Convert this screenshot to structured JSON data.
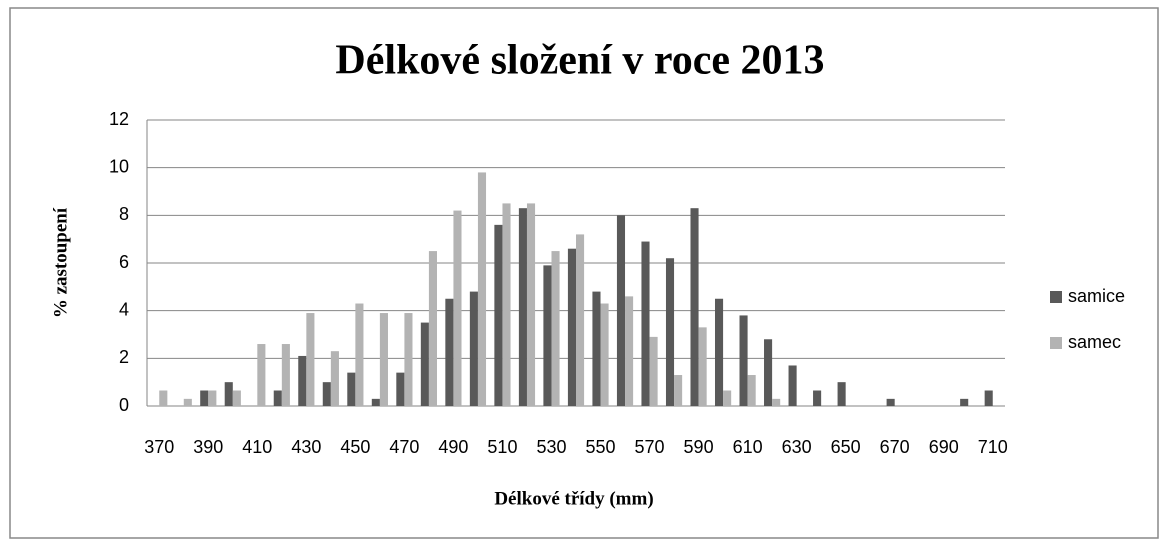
{
  "chart_data": {
    "type": "bar",
    "title": "Délkové složení v roce 2013",
    "xlabel": "Délkové třídy (mm)",
    "ylabel": "% zastoupení",
    "categories": [
      "370",
      null,
      "390",
      null,
      "410",
      null,
      "430",
      null,
      "450",
      null,
      "470",
      null,
      "490",
      null,
      "510",
      null,
      "530",
      null,
      "550",
      null,
      "570",
      null,
      "590",
      null,
      "610",
      null,
      "630",
      null,
      "650",
      null,
      "670",
      null,
      "690",
      null,
      "710"
    ],
    "series": [
      {
        "name": "samice",
        "color": "#595959",
        "values": [
          0,
          0,
          0.65,
          1.0,
          0,
          0.65,
          2.1,
          1.0,
          1.4,
          0.3,
          1.4,
          3.5,
          4.5,
          4.8,
          7.6,
          8.3,
          5.9,
          6.6,
          4.8,
          8.0,
          6.9,
          6.2,
          8.3,
          4.5,
          3.8,
          2.8,
          1.7,
          0.65,
          1.0,
          0,
          0.3,
          0,
          0,
          0.3,
          0.65
        ]
      },
      {
        "name": "samec",
        "color": "#b3b3b3",
        "values": [
          0.65,
          0.3,
          0.65,
          0.65,
          2.6,
          2.6,
          3.9,
          2.3,
          4.3,
          3.9,
          3.9,
          6.5,
          8.2,
          9.8,
          8.5,
          8.5,
          6.5,
          7.2,
          4.3,
          4.6,
          2.9,
          1.3,
          3.3,
          0.65,
          1.3,
          0.3,
          0,
          0,
          0,
          0,
          0,
          0,
          0,
          0,
          0
        ]
      }
    ],
    "ylim": [
      0,
      12
    ],
    "yticks": [
      0,
      2,
      4,
      6,
      8,
      10,
      12
    ],
    "grid": true,
    "legend": "right"
  }
}
